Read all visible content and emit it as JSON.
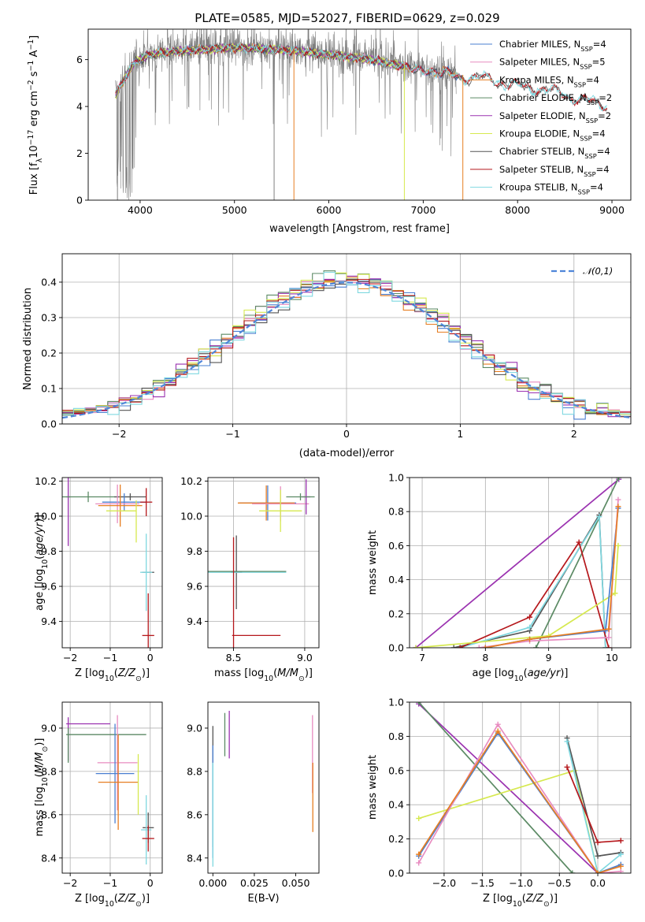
{
  "figure": {
    "title": "PLATE=0585, MJD=52027, FIBERID=0629, z=0.029"
  },
  "colors": {
    "Chabrier MILES": "#4a7fd1",
    "Salpeter MILES": "#e88cc0",
    "Kroupa MILES": "#e67e22",
    "Chabrier ELODIE": "#5b8a64",
    "Salpeter ELODIE": "#9b32b0",
    "Kroupa ELODIE": "#d6e94f",
    "Chabrier STELIB": "#555555",
    "Salpeter STELIB": "#b5171b",
    "Kroupa STELIB": "#7fd8e0",
    "data": "#7f7f7f",
    "normal": "#4f86d9"
  },
  "chart_data": [
    {
      "id": "spectrum",
      "type": "line",
      "xlabel": "wavelength [Angstrom, rest frame]",
      "ylabel": "Flux [f_λ10^-17 erg cm^-2 s^-1 A^-1]",
      "xlim": [
        3450,
        9200
      ],
      "ylim": [
        0,
        7.3
      ],
      "xticks": [
        4000,
        5000,
        6000,
        7000,
        8000,
        9000
      ],
      "yticks": [
        0,
        2,
        4,
        6
      ],
      "grid": false,
      "legend_position": "top-right",
      "legend": [
        {
          "model": "Chabrier MILES",
          "label": "Chabrier MILES, N",
          "sub": "SSP",
          "eq": "=4"
        },
        {
          "model": "Salpeter MILES",
          "label": "Salpeter MILES, N",
          "sub": "SSP",
          "eq": "=5"
        },
        {
          "model": "Kroupa MILES",
          "label": "Kroupa MILES, N",
          "sub": "SSP",
          "eq": "=4"
        },
        {
          "model": "Chabrier ELODIE",
          "label": "Chabrier ELODIE, N",
          "sub": "SSP",
          "eq": "=2"
        },
        {
          "model": "Salpeter ELODIE",
          "label": "Salpeter ELODIE, N",
          "sub": "SSP",
          "eq": "=2"
        },
        {
          "model": "Kroupa ELODIE",
          "label": "Kroupa ELODIE, N",
          "sub": "SSP",
          "eq": "=4"
        },
        {
          "model": "Chabrier STELIB",
          "label": "Chabrier STELIB, N",
          "sub": "SSP",
          "eq": "=4"
        },
        {
          "model": "Salpeter STELIB",
          "label": "Salpeter STELIB, N",
          "sub": "SSP",
          "eq": "=4"
        },
        {
          "model": "Kroupa STELIB",
          "label": "Kroupa STELIB, N",
          "sub": "SSP",
          "eq": "=4"
        }
      ],
      "continuum_knots": [
        [
          3740,
          4.6
        ],
        [
          3850,
          5.4
        ],
        [
          3950,
          6.0
        ],
        [
          4100,
          6.3
        ],
        [
          4300,
          6.4
        ],
        [
          4600,
          6.5
        ],
        [
          5000,
          6.6
        ],
        [
          5500,
          6.5
        ],
        [
          6000,
          6.3
        ],
        [
          6500,
          6.05
        ],
        [
          7000,
          5.6
        ],
        [
          7400,
          5.35
        ],
        [
          7600,
          5.3
        ],
        [
          7700,
          5.25
        ],
        [
          8000,
          4.95
        ],
        [
          8300,
          4.8
        ],
        [
          8600,
          4.45
        ],
        [
          8900,
          4.15
        ]
      ],
      "ranges": {
        "data": [
          3740,
          9200
        ],
        "MILES": [
          3740,
          7420
        ],
        "ELODIE": [
          3740,
          6800
        ],
        "STELIB": [
          3740,
          8950
        ]
      }
    },
    {
      "id": "residual_hist",
      "type": "area",
      "xlabel": "(data-model)/error",
      "ylabel": "Normed distribution",
      "xlim": [
        -2.5,
        2.5
      ],
      "ylim": [
        0,
        0.48
      ],
      "xticks": [
        -2,
        -1,
        0,
        1,
        2
      ],
      "yticks": [
        0.0,
        0.1,
        0.2,
        0.3,
        0.4
      ],
      "grid": true,
      "legend_position": "top-right",
      "legend": "𝒩(0,1)",
      "bin_width": 0.1,
      "series": [
        {
          "name": "Chabrier MILES",
          "peak": 0.4
        },
        {
          "name": "Salpeter MILES",
          "peak": 0.41
        },
        {
          "name": "Kroupa MILES",
          "peak": 0.4
        },
        {
          "name": "Chabrier ELODIE",
          "peak": 0.42
        },
        {
          "name": "Salpeter ELODIE",
          "peak": 0.41
        },
        {
          "name": "Kroupa ELODIE",
          "peak": 0.42
        },
        {
          "name": "Chabrier STELIB",
          "peak": 0.4
        },
        {
          "name": "Salpeter STELIB",
          "peak": 0.41
        },
        {
          "name": "Kroupa STELIB",
          "peak": 0.4
        }
      ]
    },
    {
      "id": "age_vs_Z",
      "type": "scatter",
      "xlabel": "Z [log10(Z/Z☉)]",
      "ylabel": "age [log10(age/yr)]",
      "xlim": [
        -2.2,
        0.3
      ],
      "ylim": [
        9.25,
        10.22
      ],
      "xticks": [
        -2,
        -1,
        0
      ],
      "yticks": [
        9.4,
        9.6,
        9.8,
        10.0,
        10.2
      ],
      "grid": true,
      "crosses": [
        {
          "model": "Salpeter ELODIE",
          "x": -2.05,
          "xerr": 0.05,
          "y": 10.11,
          "yerr": 0.28
        },
        {
          "model": "Chabrier ELODIE",
          "x": -1.55,
          "xerr": 1.1,
          "y": 10.11,
          "yerr": 0.03
        },
        {
          "model": "Chabrier STELIB",
          "x": -0.5,
          "xerr": 0.4,
          "y": 10.11,
          "yerr": 0.02
        },
        {
          "model": "Chabrier MILES",
          "x": -0.65,
          "xerr": 0.55,
          "y": 10.08,
          "yerr": 0.05
        },
        {
          "model": "Salpeter MILES",
          "x": -0.82,
          "xerr": 0.55,
          "y": 10.07,
          "yerr": 0.11
        },
        {
          "model": "Kroupa MILES",
          "x": -0.75,
          "xerr": 0.55,
          "y": 10.06,
          "yerr": 0.12
        },
        {
          "model": "Kroupa ELODIE",
          "x": -0.72,
          "xerr": 0.38,
          "y": 10.03,
          "yerr": 0.0
        },
        {
          "model": "Kroupa ELODIE",
          "x": -0.35,
          "xerr": 0.0,
          "y": 9.97,
          "yerr": 0.12
        },
        {
          "model": "Salpeter STELIB",
          "x": -0.1,
          "xerr": 0.15,
          "y": 10.08,
          "yerr": 0.08
        },
        {
          "model": "Chabrier STELIB",
          "x": -0.05,
          "xerr": 0.15,
          "y": 9.68,
          "yerr": 0.0
        },
        {
          "model": "Kroupa STELIB",
          "x": -0.1,
          "xerr": 0.15,
          "y": 9.68,
          "yerr": 0.22
        },
        {
          "model": "Salpeter STELIB",
          "x": -0.05,
          "xerr": 0.15,
          "y": 9.32,
          "yerr": 0.24
        }
      ]
    },
    {
      "id": "age_vs_mass",
      "type": "scatter",
      "xlabel": "mass [log10(M/M☉)]",
      "xlim": [
        8.32,
        9.1
      ],
      "ylim": [
        9.25,
        10.22
      ],
      "xticks": [
        8.5,
        9.0
      ],
      "yticks": [
        9.4,
        9.6,
        9.8,
        10.0,
        10.2
      ],
      "grid": true,
      "crosses": [
        {
          "model": "Chabrier STELIB",
          "x": 8.52,
          "xerr": 0.04,
          "y": 9.68,
          "yerr": 0.21
        },
        {
          "model": "Kroupa STELIB",
          "x": 8.55,
          "xerr": 0.32,
          "y": 9.68,
          "yerr": 0.0
        },
        {
          "model": "Chabrier ELODIE",
          "x": 8.52,
          "xerr": 0.35,
          "y": 9.685,
          "yerr": 0.0
        },
        {
          "model": "Salpeter STELIB",
          "x": 8.5,
          "xerr": 0.0,
          "y": 9.32,
          "yerr": 0.56
        },
        {
          "model": "Salpeter STELIB",
          "x": 8.66,
          "xerr": 0.17,
          "y": 9.32,
          "yerr": 0.0
        },
        {
          "model": "Chabrier MILES",
          "x": 8.74,
          "xerr": 0.2,
          "y": 10.075,
          "yerr": 0.1
        },
        {
          "model": "Kroupa MILES",
          "x": 8.73,
          "xerr": 0.2,
          "y": 10.075,
          "yerr": 0.1
        },
        {
          "model": "Salpeter MILES",
          "x": 8.83,
          "xerr": 0.2,
          "y": 10.07,
          "yerr": 0.1
        },
        {
          "model": "Kroupa ELODIE",
          "x": 8.83,
          "xerr": 0.15,
          "y": 10.03,
          "yerr": 0.12
        },
        {
          "model": "Salpeter ELODIE",
          "x": 9.01,
          "xerr": 0.03,
          "y": 10.11,
          "yerr": 0.1
        },
        {
          "model": "Chabrier ELODIE",
          "x": 8.97,
          "xerr": 0.1,
          "y": 10.11,
          "yerr": 0.02
        }
      ]
    },
    {
      "id": "weight_vs_age",
      "type": "line",
      "xlabel": "age [log10(age/yr)]",
      "ylabel": "mass weight",
      "xlim": [
        6.8,
        10.3
      ],
      "ylim": [
        0,
        1
      ],
      "xticks": [
        7,
        8,
        9,
        10
      ],
      "yticks": [
        0.0,
        0.2,
        0.4,
        0.6,
        0.8,
        1.0
      ],
      "grid": true,
      "series": [
        {
          "name": "Salpeter ELODIE",
          "x": [
            6.9,
            10.11
          ],
          "y": [
            0.0,
            0.99
          ]
        },
        {
          "name": "Chabrier ELODIE",
          "x": [
            8.8,
            10.11
          ],
          "y": [
            0.0,
            1.0
          ]
        },
        {
          "name": "Chabrier STELIB",
          "x": [
            7.5,
            8.7,
            9.8,
            9.9
          ],
          "y": [
            0.0,
            0.1,
            0.78,
            0.0
          ]
        },
        {
          "name": "Kroupa STELIB",
          "x": [
            7.6,
            8.7,
            9.8,
            9.9
          ],
          "y": [
            0.0,
            0.12,
            0.77,
            0.0
          ]
        },
        {
          "name": "Salpeter STELIB",
          "x": [
            7.6,
            8.7,
            9.48,
            9.95
          ],
          "y": [
            0.0,
            0.18,
            0.62,
            0.0
          ]
        },
        {
          "name": "Kroupa ELODIE",
          "x": [
            6.9,
            9.0,
            10.05,
            10.1
          ],
          "y": [
            0.0,
            0.07,
            0.32,
            0.6
          ]
        },
        {
          "name": "Chabrier MILES",
          "x": [
            8.0,
            8.7,
            9.9,
            10.1
          ],
          "y": [
            0.0,
            0.05,
            0.1,
            0.82
          ]
        },
        {
          "name": "Salpeter MILES",
          "x": [
            7.9,
            8.7,
            9.95,
            10.1
          ],
          "y": [
            0.0,
            0.04,
            0.06,
            0.87
          ]
        },
        {
          "name": "Kroupa MILES",
          "x": [
            8.0,
            8.7,
            9.95,
            10.1
          ],
          "y": [
            0.0,
            0.05,
            0.11,
            0.83
          ]
        }
      ]
    },
    {
      "id": "mass_vs_Z",
      "type": "scatter",
      "xlabel": "Z [log10(Z/Z☉)]",
      "ylabel": "mass [log10(M/M☉)]",
      "xlim": [
        -2.2,
        0.3
      ],
      "ylim": [
        8.33,
        9.12
      ],
      "xticks": [
        -2,
        -1,
        0
      ],
      "yticks": [
        8.4,
        8.6,
        8.8,
        9.0
      ],
      "grid": true,
      "crosses": [
        {
          "model": "Salpeter ELODIE",
          "x": -1.55,
          "xerr": 0.55,
          "y": 9.02,
          "yerr": 0.0
        },
        {
          "model": "Salpeter ELODIE",
          "x": -2.05,
          "xerr": 0.0,
          "y": 8.95,
          "yerr": 0.1
        },
        {
          "model": "Chabrier ELODIE",
          "x": -1.1,
          "xerr": 1.0,
          "y": 8.97,
          "yerr": 0.0
        },
        {
          "model": "Chabrier ELODIE",
          "x": -2.05,
          "xerr": 0.0,
          "y": 8.92,
          "yerr": 0.08
        },
        {
          "model": "Salpeter MILES",
          "x": -0.82,
          "xerr": 0.5,
          "y": 8.84,
          "yerr": 0.22
        },
        {
          "model": "Chabrier MILES",
          "x": -0.88,
          "xerr": 0.48,
          "y": 8.79,
          "yerr": 0.23
        },
        {
          "model": "Kroupa MILES",
          "x": -0.8,
          "xerr": 0.5,
          "y": 8.75,
          "yerr": 0.22
        },
        {
          "model": "Kroupa ELODIE",
          "x": -0.3,
          "xerr": 0.0,
          "y": 8.74,
          "yerr": 0.14
        },
        {
          "model": "Chabrier STELIB",
          "x": -0.05,
          "xerr": 0.14,
          "y": 8.54,
          "yerr": 0.07
        },
        {
          "model": "Kroupa STELIB",
          "x": -0.1,
          "xerr": 0.13,
          "y": 8.53,
          "yerr": 0.16
        },
        {
          "model": "Salpeter STELIB",
          "x": -0.05,
          "xerr": 0.15,
          "y": 8.49,
          "yerr": 0.06
        }
      ]
    },
    {
      "id": "mass_vs_EBV",
      "type": "scatter",
      "xlabel": "E(B-V)",
      "xlim": [
        -0.003,
        0.064
      ],
      "ylim": [
        8.33,
        9.12
      ],
      "xticks": [
        0.0,
        0.025,
        0.05
      ],
      "ticklabels": [
        "0.000",
        "0.025",
        "0.050"
      ],
      "yticks": [
        8.4,
        8.6,
        8.8,
        9.0
      ],
      "grid": false,
      "crosses": [
        {
          "model": "Chabrier STELIB",
          "x": 0.0,
          "xerr": 0.0,
          "y": 8.73,
          "yerr": 0.28
        },
        {
          "model": "Chabrier MILES",
          "x": 0.0,
          "xerr": 0.0,
          "y": 8.66,
          "yerr": 0.26
        },
        {
          "model": "Kroupa STELIB",
          "x": 0.0,
          "xerr": 0.0,
          "y": 8.6,
          "yerr": 0.24
        },
        {
          "model": "Salpeter ELODIE",
          "x": 0.0099,
          "xerr": 0.0,
          "y": 8.97,
          "yerr": 0.11
        },
        {
          "model": "Chabrier ELODIE",
          "x": 0.0072,
          "xerr": 0.0,
          "y": 8.97,
          "yerr": 0.1
        },
        {
          "model": "Salpeter MILES",
          "x": 0.0601,
          "xerr": 0.0,
          "y": 8.88,
          "yerr": 0.18
        },
        {
          "model": "Kroupa MILES",
          "x": 0.0603,
          "xerr": 0.0,
          "y": 8.68,
          "yerr": 0.16
        }
      ]
    },
    {
      "id": "weight_vs_Z",
      "type": "line",
      "xlabel": "Z [log10(Z/Z☉)]",
      "ylabel": "mass weight",
      "xlim": [
        -2.45,
        0.43
      ],
      "ylim": [
        0,
        1
      ],
      "xticks": [
        -2.0,
        -1.5,
        -1.0,
        -0.5,
        0.0
      ],
      "yticks": [
        0.0,
        0.2,
        0.4,
        0.6,
        0.8,
        1.0
      ],
      "grid": true,
      "series": [
        {
          "name": "Salpeter ELODIE",
          "x": [
            -2.33,
            0.0
          ],
          "y": [
            0.99,
            0.0
          ]
        },
        {
          "name": "Chabrier ELODIE",
          "x": [
            -2.33,
            -0.33
          ],
          "y": [
            1.0,
            0.0
          ]
        },
        {
          "name": "Kroupa ELODIE",
          "x": [
            -2.33,
            -0.3,
            0.0
          ],
          "y": [
            0.32,
            0.6,
            0.0
          ]
        },
        {
          "name": "Chabrier STELIB",
          "x": [
            -0.4,
            0.0,
            0.3
          ],
          "y": [
            0.79,
            0.1,
            0.12
          ]
        },
        {
          "name": "Kroupa STELIB",
          "x": [
            -0.4,
            0.0,
            0.3
          ],
          "y": [
            0.77,
            0.0,
            0.11
          ]
        },
        {
          "name": "Salpeter STELIB",
          "x": [
            -0.4,
            0.0,
            0.3
          ],
          "y": [
            0.62,
            0.18,
            0.19
          ]
        },
        {
          "name": "Chabrier MILES",
          "x": [
            -2.33,
            -1.3,
            0.0,
            0.3
          ],
          "y": [
            0.1,
            0.82,
            0.0,
            0.05
          ]
        },
        {
          "name": "Salpeter MILES",
          "x": [
            -2.33,
            -1.3,
            0.0,
            0.3
          ],
          "y": [
            0.06,
            0.87,
            0.0,
            0.01
          ]
        },
        {
          "name": "Kroupa MILES",
          "x": [
            -2.33,
            -1.3,
            0.0,
            0.3
          ],
          "y": [
            0.11,
            0.83,
            0.0,
            0.04
          ]
        }
      ]
    }
  ]
}
